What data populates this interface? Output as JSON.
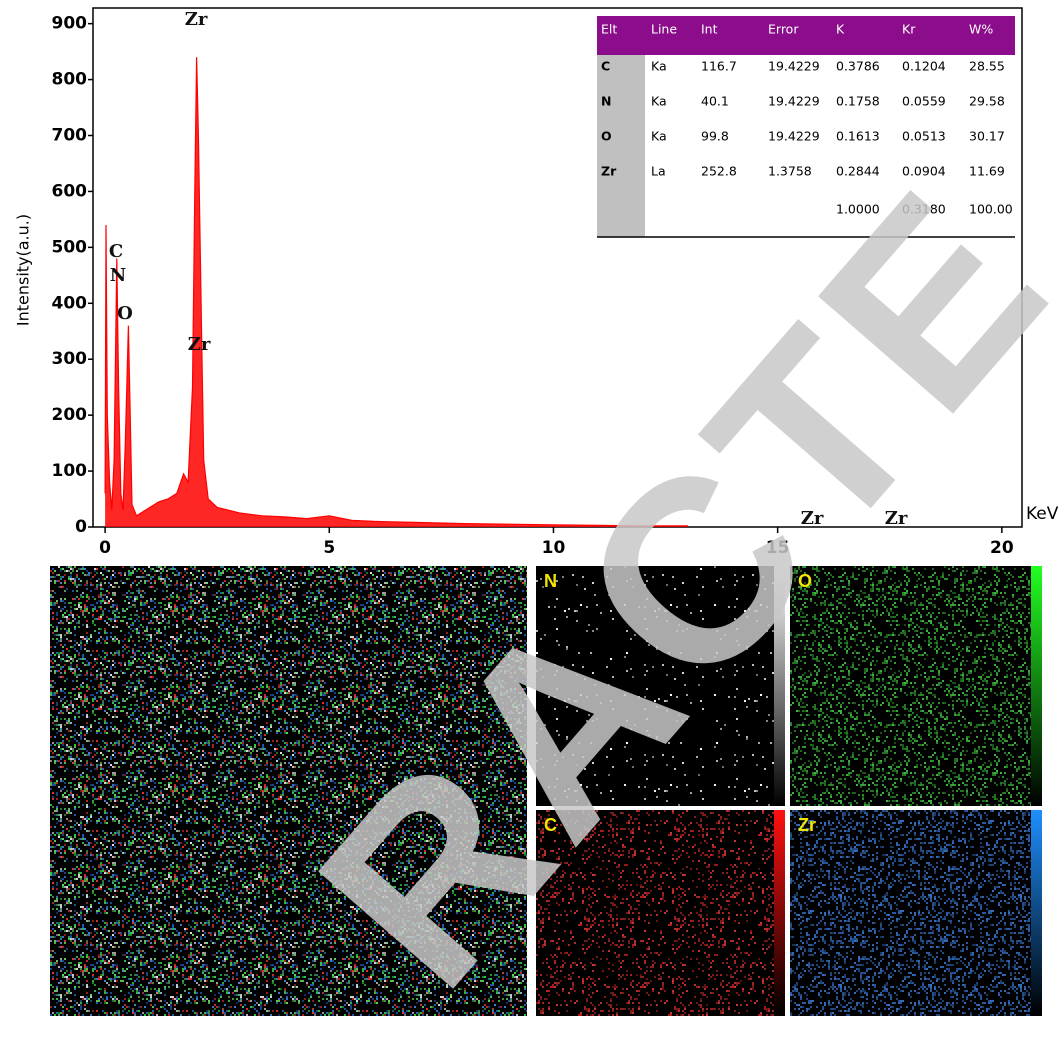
{
  "chart_data": {
    "type": "line",
    "x_label": "KeV",
    "y_label": "Intensity(a.u.)",
    "color": "#ff0000",
    "xlim": [
      -0.27,
      20.45
    ],
    "ylim": [
      0,
      928
    ],
    "xticks": [
      0,
      5,
      10,
      15,
      20
    ],
    "yticks": [
      0,
      100,
      200,
      300,
      400,
      500,
      600,
      700,
      800,
      900
    ],
    "x": [
      0,
      0.02,
      0.05,
      0.1,
      0.15,
      0.2,
      0.26,
      0.3,
      0.35,
      0.4,
      0.45,
      0.52,
      0.56,
      0.6,
      0.7,
      0.8,
      1.0,
      1.2,
      1.4,
      1.6,
      1.75,
      1.85,
      1.95,
      2.0,
      2.04,
      2.08,
      2.12,
      2.16,
      2.2,
      2.3,
      2.5,
      3,
      3.5,
      4,
      4.5,
      5,
      5.5,
      6,
      7,
      8,
      9,
      10,
      11,
      12,
      13
    ],
    "values": [
      60,
      540,
      200,
      80,
      30,
      120,
      480,
      250,
      60,
      30,
      150,
      360,
      200,
      40,
      20,
      25,
      35,
      45,
      50,
      60,
      95,
      80,
      250,
      600,
      840,
      700,
      500,
      300,
      120,
      50,
      35,
      25,
      20,
      18,
      15,
      20,
      12,
      10,
      8,
      6,
      5,
      4,
      3,
      2,
      2
    ],
    "annotations": [
      "Zr",
      "C",
      "N",
      "O",
      "Zr",
      "Zr",
      "Zr"
    ]
  },
  "table": {
    "header": [
      "Elt",
      "Line",
      "Int",
      "Error",
      "K",
      "Kr",
      "W%"
    ],
    "rows": [
      [
        "C",
        "Ka",
        "116.7",
        "19.4229",
        "0.3786",
        "0.1204",
        "28.55"
      ],
      [
        "N",
        "Ka",
        "40.1",
        "19.4229",
        "0.1758",
        "0.0559",
        "29.58"
      ],
      [
        "O",
        "Ka",
        "99.8",
        "19.4229",
        "0.1613",
        "0.0513",
        "30.17"
      ],
      [
        "Zr",
        "La",
        "252.8",
        "1.3758",
        "0.2844",
        "0.0904",
        "11.69"
      ]
    ],
    "total": [
      "1.0000",
      "0.3180",
      "100.00"
    ]
  },
  "maps": {
    "labels": [
      "N",
      "O",
      "C",
      "Zr"
    ]
  },
  "watermark": "RACTE"
}
